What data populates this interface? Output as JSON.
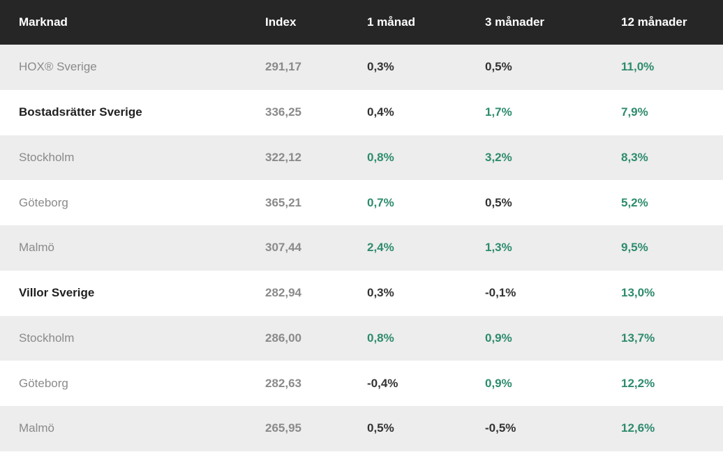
{
  "table": {
    "headers": {
      "market": "Marknad",
      "index": "Index",
      "m1": "1 månad",
      "m3": "3 månader",
      "m12": "12 månader"
    },
    "rows": [
      {
        "market": "HOX® Sverige",
        "bold": false,
        "index": "291,17",
        "m1": "0,3%",
        "m1_color": "neutral",
        "m3": "0,5%",
        "m3_color": "neutral",
        "m12": "11,0%",
        "m12_color": "positive"
      },
      {
        "market": "Bostadsrätter Sverige",
        "bold": true,
        "index": "336,25",
        "m1": "0,4%",
        "m1_color": "neutral",
        "m3": "1,7%",
        "m3_color": "positive",
        "m12": "7,9%",
        "m12_color": "positive"
      },
      {
        "market": "Stockholm",
        "bold": false,
        "index": "322,12",
        "m1": "0,8%",
        "m1_color": "positive",
        "m3": "3,2%",
        "m3_color": "positive",
        "m12": "8,3%",
        "m12_color": "positive"
      },
      {
        "market": "Göteborg",
        "bold": false,
        "index": "365,21",
        "m1": "0,7%",
        "m1_color": "positive",
        "m3": "0,5%",
        "m3_color": "neutral",
        "m12": "5,2%",
        "m12_color": "positive"
      },
      {
        "market": "Malmö",
        "bold": false,
        "index": "307,44",
        "m1": "2,4%",
        "m1_color": "positive",
        "m3": "1,3%",
        "m3_color": "positive",
        "m12": "9,5%",
        "m12_color": "positive"
      },
      {
        "market": "Villor Sverige",
        "bold": true,
        "index": "282,94",
        "m1": "0,3%",
        "m1_color": "neutral",
        "m3": "-0,1%",
        "m3_color": "negative",
        "m12": "13,0%",
        "m12_color": "positive"
      },
      {
        "market": "Stockholm",
        "bold": false,
        "index": "286,00",
        "m1": "0,8%",
        "m1_color": "positive",
        "m3": "0,9%",
        "m3_color": "positive",
        "m12": "13,7%",
        "m12_color": "positive"
      },
      {
        "market": "Göteborg",
        "bold": false,
        "index": "282,63",
        "m1": "-0,4%",
        "m1_color": "negative",
        "m3": "0,9%",
        "m3_color": "positive",
        "m12": "12,2%",
        "m12_color": "positive"
      },
      {
        "market": "Malmö",
        "bold": false,
        "index": "265,95",
        "m1": "0,5%",
        "m1_color": "neutral",
        "m3": "-0,5%",
        "m3_color": "negative",
        "m12": "12,6%",
        "m12_color": "positive"
      }
    ]
  },
  "colors": {
    "header_bg": "#262626",
    "row_alt_bg": "#ededed",
    "positive": "#2e8b6e",
    "neutral": "#333333",
    "muted": "#8a8a8a"
  }
}
